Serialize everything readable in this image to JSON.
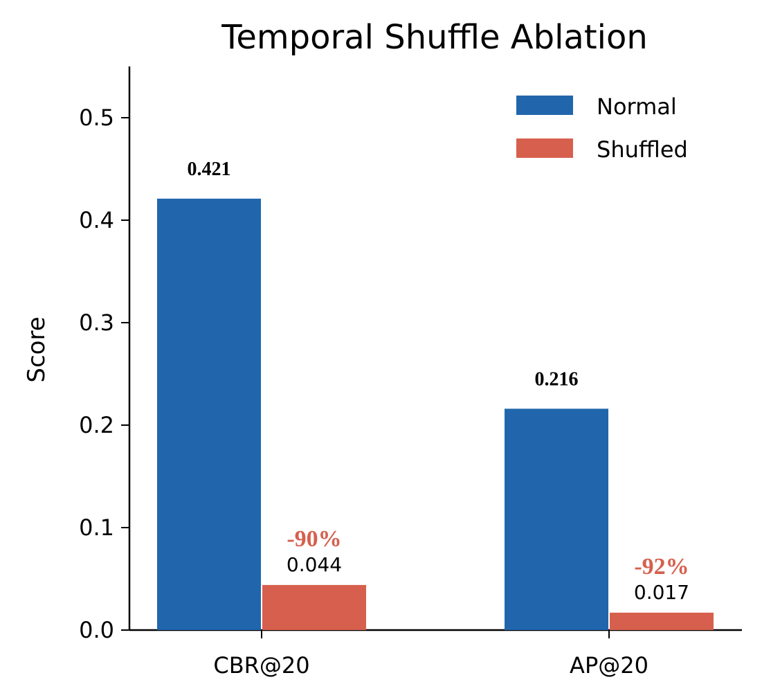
{
  "chart_data": {
    "type": "bar",
    "title": "Temporal Shuffle Ablation",
    "xlabel": "",
    "ylabel": "Score",
    "categories": [
      "CBR@20",
      "AP@20"
    ],
    "series": [
      {
        "name": "Normal",
        "color": "#2166ac",
        "values": [
          0.421,
          0.216
        ],
        "labels": [
          "0.421",
          "0.216"
        ]
      },
      {
        "name": "Shuffled",
        "color": "#d6604d",
        "values": [
          0.044,
          0.017
        ],
        "labels": [
          "0.044",
          "0.017"
        ]
      }
    ],
    "change_labels": [
      "-90%",
      "-92%"
    ],
    "change_color": "#d6604d",
    "ylim": [
      0,
      0.55
    ],
    "yticks": [
      0.0,
      0.1,
      0.2,
      0.3,
      0.4,
      0.5
    ],
    "ytick_labels": [
      "0.0",
      "0.1",
      "0.2",
      "0.3",
      "0.4",
      "0.5"
    ],
    "legend_position": "top-right",
    "grid": false
  }
}
